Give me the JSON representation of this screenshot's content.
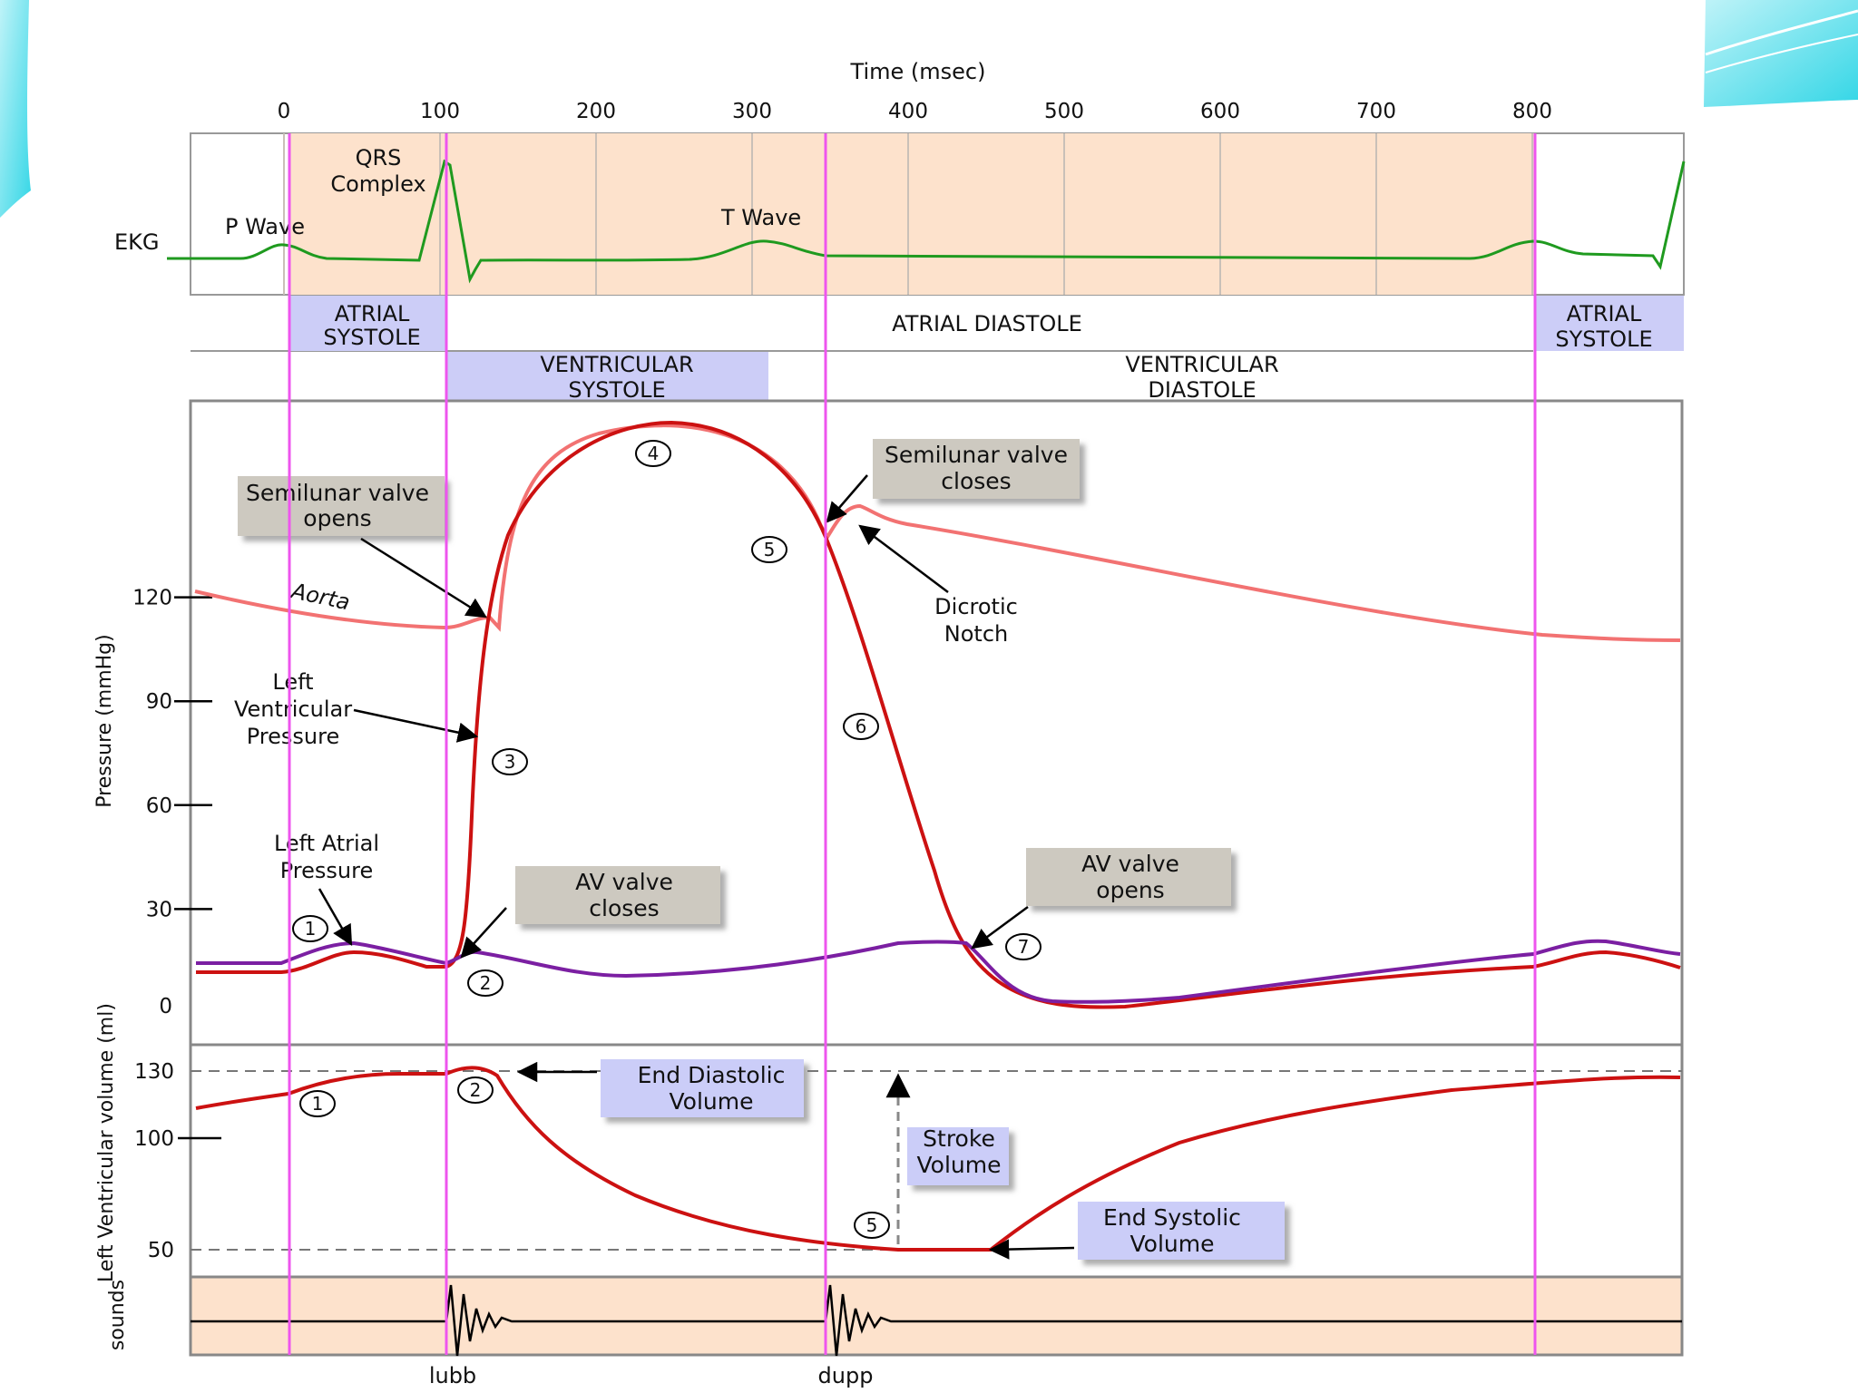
{
  "time_axis": {
    "title": "Time (msec)",
    "ticks": [
      "0",
      "100",
      "200",
      "300",
      "400",
      "500",
      "600",
      "700",
      "800"
    ]
  },
  "ekg": {
    "label": "EKG",
    "p_wave": "P Wave",
    "qrs_line1": "QRS",
    "qrs_line2": "Complex",
    "t_wave": "T Wave"
  },
  "atrial_row": {
    "systole_1_line1": "ATRIAL",
    "systole_1_line2": "SYSTOLE",
    "diastole": "ATRIAL DIASTOLE",
    "systole_2_line1": "ATRIAL",
    "systole_2_line2": "SYSTOLE"
  },
  "ventricular_row": {
    "systole_line1": "VENTRICULAR",
    "systole_line2": "SYSTOLE",
    "diastole_line1": "VENTRICULAR",
    "diastole_line2": "DIASTOLE"
  },
  "pressure_panel": {
    "ylabel": "Pressure (mmHg)",
    "ticks": [
      "120",
      "90",
      "60",
      "30",
      "0"
    ],
    "aorta_label": "Aorta",
    "lv_line1": "Left",
    "lv_line2": "Ventricular",
    "lv_line3": "Pressure",
    "la_line1": "Left Atrial",
    "la_line2": "Pressure",
    "dicrotic_line1": "Dicrotic",
    "dicrotic_line2": "Notch",
    "callouts": {
      "sl_opens_line1": "Semilunar valve",
      "sl_opens_line2": "opens",
      "sl_closes_line1": "Semilunar valve",
      "sl_closes_line2": "closes",
      "av_closes_line1": "AV valve",
      "av_closes_line2": "closes",
      "av_opens_line1": "AV valve",
      "av_opens_line2": "opens"
    },
    "markers": [
      "1",
      "2",
      "3",
      "4",
      "5",
      "6",
      "7"
    ]
  },
  "volume_panel": {
    "ylabel": "Left Ventricular volume (ml)",
    "ticks": [
      "130",
      "100",
      "50"
    ],
    "edv_line1": "End Diastolic",
    "edv_line2": "Volume",
    "esv_line1": "End Systolic",
    "esv_line2": "Volume",
    "sv_line1": "Stroke",
    "sv_line2": "Volume",
    "markers": [
      "1",
      "2",
      "5"
    ]
  },
  "sounds_panel": {
    "ylabel": "sounds",
    "lubb": "lubb",
    "dupp": "dupp"
  },
  "colors": {
    "phase_fill": "#fde2cc",
    "phase_label_fill": "#cccdf7",
    "callout_fill": "#cdc9c0",
    "callout_blue_fill": "#cbcdf8",
    "ekg_line": "#1f9a1f",
    "aorta_line": "#f27272",
    "lv_line": "#cc1111",
    "la_line": "#7b1fa2",
    "marker_line": "#ee55ee",
    "sound_line": "#000000"
  }
}
